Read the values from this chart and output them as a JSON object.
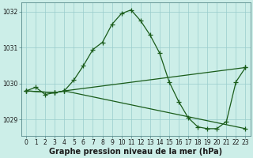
{
  "xlabel": "Graphe pression niveau de la mer (hPa)",
  "background_color": "#cceee8",
  "grid_color": "#99cccc",
  "line_color": "#1a5c1a",
  "line1": {
    "x": [
      0,
      1,
      2,
      3,
      4,
      5,
      6,
      7,
      8,
      9,
      10,
      11,
      12,
      13,
      14,
      15,
      16,
      17,
      18,
      19,
      20,
      21,
      22,
      23
    ],
    "y": [
      1029.8,
      1029.9,
      1029.7,
      1029.75,
      1029.8,
      1030.1,
      1030.5,
      1030.95,
      1031.15,
      1031.65,
      1031.95,
      1032.05,
      1031.75,
      1031.35,
      1030.85,
      1030.05,
      1029.5,
      1029.05,
      1028.8,
      1028.75,
      1028.75,
      1028.95,
      1030.05,
      1030.45
    ]
  },
  "line2": {
    "x": [
      0,
      3,
      4,
      23
    ],
    "y": [
      1029.8,
      1029.75,
      1029.8,
      1030.45
    ]
  },
  "line3": {
    "x": [
      0,
      3,
      4,
      23
    ],
    "y": [
      1029.8,
      1029.75,
      1029.8,
      1028.75
    ]
  },
  "ylim": [
    1028.55,
    1032.25
  ],
  "yticks": [
    1029,
    1030,
    1031,
    1032
  ],
  "xticks": [
    0,
    1,
    2,
    3,
    4,
    5,
    6,
    7,
    8,
    9,
    10,
    11,
    12,
    13,
    14,
    15,
    16,
    17,
    18,
    19,
    20,
    21,
    22,
    23
  ],
  "marker": "+",
  "markersize": 4,
  "linewidth": 0.9,
  "tick_labelsize": 5.5,
  "xlabel_fontsize": 7,
  "xlabel_fontweight": "bold"
}
